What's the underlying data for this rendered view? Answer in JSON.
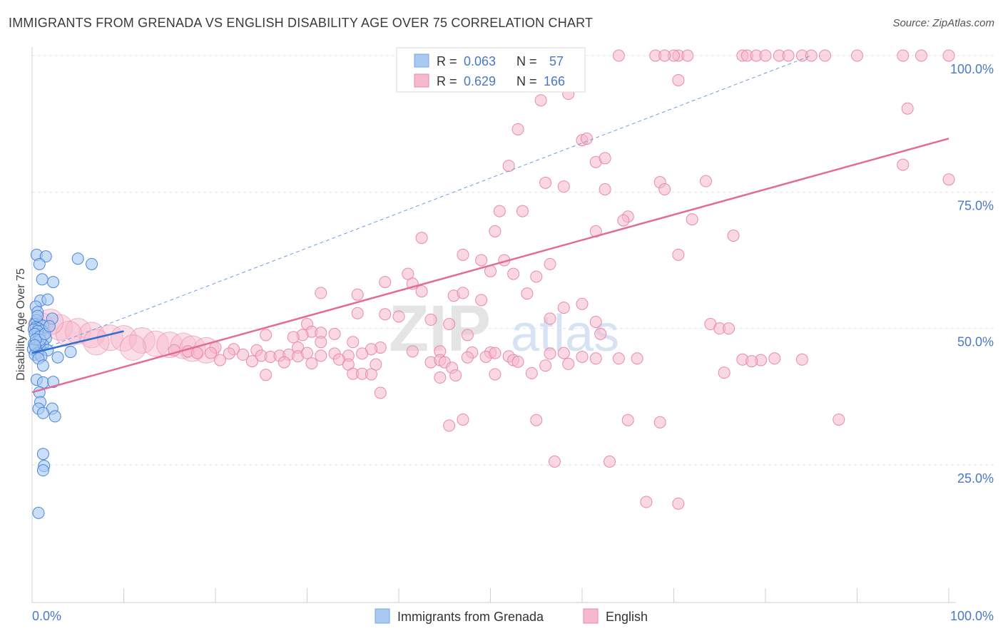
{
  "title": "IMMIGRANTS FROM GRENADA VS ENGLISH DISABILITY AGE OVER 75 CORRELATION CHART",
  "source": "Source: ZipAtlas.com",
  "watermark": {
    "zip": "ZIP",
    "atlas": "atlas"
  },
  "colors": {
    "blue": "#4a86d8",
    "blue_fill": "#a9c8f2",
    "pink": "#e26b97",
    "pink_fill": "#f6b8cc",
    "axis_text": "#4a78c8",
    "grid": "#e3e3e3"
  },
  "legend": {
    "rows": [
      {
        "r_label": "R = ",
        "r_value": "0.063",
        "n_label": "N = ",
        "n_value": "57"
      },
      {
        "r_label": "R = ",
        "r_value": "0.629",
        "n_label": "N = ",
        "n_value": "166"
      }
    ]
  },
  "bottom_legend": [
    "Immigrants from Grenada",
    "English"
  ],
  "chart_data": {
    "type": "scatter",
    "xlabel": "",
    "ylabel": "Disability Age Over 75",
    "xlim": [
      0,
      100
    ],
    "ylim": [
      0,
      100
    ],
    "x_tick_labels": [
      "0.0%",
      "100.0%"
    ],
    "y_tick_labels": [
      "25.0%",
      "50.0%",
      "75.0%",
      "100.0%"
    ],
    "y_ticks": [
      25,
      50,
      75,
      100
    ],
    "grid": true,
    "legend_position": "top-center",
    "series": [
      {
        "name": "Immigrants from Grenada",
        "r": 0.063,
        "n": 57,
        "trend": {
          "x": [
            0,
            10
          ],
          "y": [
            45.5,
            49.5
          ]
        },
        "trend_dashed": {
          "x": [
            0,
            85
          ],
          "y": [
            45.5,
            100
          ]
        },
        "points": [
          [
            0.5,
            63.5
          ],
          [
            1.5,
            63.2
          ],
          [
            5,
            62.8
          ],
          [
            6.5,
            61.8
          ],
          [
            0.8,
            61.8
          ],
          [
            1.1,
            59
          ],
          [
            2.3,
            58.5
          ],
          [
            0.9,
            55.1
          ],
          [
            1.7,
            55.3
          ],
          [
            0.4,
            54
          ],
          [
            0.6,
            53
          ],
          [
            2.2,
            51.8
          ],
          [
            0.5,
            51.5
          ],
          [
            0.3,
            50.8
          ],
          [
            0.9,
            50.7
          ],
          [
            1.2,
            50.5
          ],
          [
            0.4,
            50.2
          ],
          [
            0.7,
            50
          ],
          [
            0.2,
            49.8
          ],
          [
            1.1,
            49.6
          ],
          [
            0.6,
            49.5
          ],
          [
            0.3,
            49
          ],
          [
            0.8,
            48.5
          ],
          [
            1.5,
            48.2
          ],
          [
            0.5,
            47.6
          ],
          [
            0.2,
            47.2
          ],
          [
            1.2,
            47
          ],
          [
            0.8,
            46.8
          ],
          [
            0.4,
            46.5
          ],
          [
            0.1,
            46.2
          ],
          [
            1.7,
            46
          ],
          [
            4.2,
            45.7
          ],
          [
            0.6,
            45.5
          ],
          [
            0.3,
            45.2
          ],
          [
            1,
            44.9
          ],
          [
            2.8,
            44.7
          ],
          [
            0.7,
            44.5
          ],
          [
            1.2,
            43.2
          ],
          [
            0.5,
            40.6
          ],
          [
            1.2,
            40.1
          ],
          [
            2.3,
            40.2
          ],
          [
            0.8,
            38.3
          ],
          [
            0.9,
            36.5
          ],
          [
            0.7,
            35.3
          ],
          [
            2.2,
            35.3
          ],
          [
            1.2,
            34.5
          ],
          [
            2.5,
            33.9
          ],
          [
            1.2,
            27
          ],
          [
            1.3,
            24.8
          ],
          [
            1.2,
            24
          ],
          [
            0.7,
            16.2
          ],
          [
            0.9,
            47.9
          ],
          [
            0.4,
            48
          ],
          [
            1.4,
            49
          ],
          [
            0.6,
            52.3
          ],
          [
            1.9,
            50.4
          ],
          [
            0.3,
            46.9
          ]
        ]
      },
      {
        "name": "English",
        "r": 0.629,
        "n": 166,
        "trend": {
          "x": [
            0,
            100
          ],
          "y": [
            38.3,
            84.8
          ]
        },
        "points": [
          [
            64,
            100
          ],
          [
            68,
            100
          ],
          [
            70.5,
            100
          ],
          [
            70,
            100
          ],
          [
            69,
            100
          ],
          [
            71.5,
            100
          ],
          [
            77.5,
            100
          ],
          [
            78,
            100
          ],
          [
            79,
            100
          ],
          [
            80,
            100
          ],
          [
            81.5,
            100
          ],
          [
            82.5,
            100
          ],
          [
            84,
            100
          ],
          [
            85,
            100
          ],
          [
            86.5,
            100
          ],
          [
            90,
            100
          ],
          [
            95,
            100
          ],
          [
            97,
            100
          ],
          [
            100,
            100
          ],
          [
            70.5,
            95.5
          ],
          [
            55.5,
            91.8
          ],
          [
            58.5,
            93
          ],
          [
            95.5,
            90.3
          ],
          [
            53,
            86.5
          ],
          [
            60,
            84.5
          ],
          [
            60.5,
            84.8
          ],
          [
            61.5,
            80.5
          ],
          [
            62.5,
            81.2
          ],
          [
            52,
            79.8
          ],
          [
            95,
            80
          ],
          [
            56,
            76.7
          ],
          [
            58,
            76
          ],
          [
            62.5,
            75.5
          ],
          [
            68.5,
            76.8
          ],
          [
            69,
            75.5
          ],
          [
            73.5,
            77
          ],
          [
            100,
            77.3
          ],
          [
            51,
            71.5
          ],
          [
            53.5,
            71.5
          ],
          [
            65,
            70.5
          ],
          [
            64.5,
            69.8
          ],
          [
            72,
            70
          ],
          [
            50.5,
            67.8
          ],
          [
            61.5,
            67.8
          ],
          [
            76.5,
            67
          ],
          [
            42.5,
            66.6
          ],
          [
            47,
            63.5
          ],
          [
            49,
            62.5
          ],
          [
            51.5,
            62.5
          ],
          [
            70.5,
            63.5
          ],
          [
            56.5,
            61.8
          ],
          [
            50,
            60.5
          ],
          [
            52.5,
            60
          ],
          [
            41,
            60
          ],
          [
            55,
            59.5
          ],
          [
            38.5,
            58.5
          ],
          [
            41.5,
            58.2
          ],
          [
            42.5,
            56.8
          ],
          [
            35.5,
            56.2
          ],
          [
            31.5,
            56.5
          ],
          [
            46,
            56
          ],
          [
            47,
            56.5
          ],
          [
            49,
            55.2
          ],
          [
            54,
            56.4
          ],
          [
            60,
            54.5
          ],
          [
            58,
            53.8
          ],
          [
            35.5,
            52.8
          ],
          [
            38.5,
            52.6
          ],
          [
            40,
            52.2
          ],
          [
            43.5,
            51.6
          ],
          [
            45.5,
            50.8
          ],
          [
            56.5,
            51.8
          ],
          [
            61.5,
            51.2
          ],
          [
            74,
            50.8
          ],
          [
            75,
            50
          ],
          [
            30,
            50.8
          ],
          [
            30.5,
            49.4
          ],
          [
            31.5,
            49.2
          ],
          [
            33,
            49
          ],
          [
            29.5,
            48.8
          ],
          [
            47.5,
            48.8
          ],
          [
            62,
            49
          ],
          [
            25.5,
            48.8
          ],
          [
            28.5,
            48.4
          ],
          [
            31.5,
            47.5
          ],
          [
            35,
            47.5
          ],
          [
            38,
            46.5
          ],
          [
            37,
            46.2
          ],
          [
            29,
            46.5
          ],
          [
            20,
            46.5
          ],
          [
            22,
            46.2
          ],
          [
            24.5,
            46
          ],
          [
            15.5,
            46
          ],
          [
            17,
            45.8
          ],
          [
            18,
            45.5
          ],
          [
            19.5,
            45.5
          ],
          [
            21.5,
            45.4
          ],
          [
            23,
            45.2
          ],
          [
            25,
            45
          ],
          [
            26,
            44.8
          ],
          [
            27,
            45
          ],
          [
            28,
            45.2
          ],
          [
            29,
            44.9
          ],
          [
            30,
            45.5
          ],
          [
            31.5,
            45
          ],
          [
            33,
            45.4
          ],
          [
            34.5,
            45
          ],
          [
            36,
            45.4
          ],
          [
            41.5,
            45.8
          ],
          [
            44.5,
            45.8
          ],
          [
            48,
            45.6
          ],
          [
            50,
            45.6
          ],
          [
            52,
            44.9
          ],
          [
            56.5,
            45.4
          ],
          [
            58,
            45.5
          ],
          [
            60,
            44.8
          ],
          [
            61.5,
            44.5
          ],
          [
            64,
            44.5
          ],
          [
            66,
            44.5
          ],
          [
            20.5,
            44.2
          ],
          [
            24,
            44
          ],
          [
            27.5,
            43.8
          ],
          [
            30.5,
            43.6
          ],
          [
            33.5,
            44.3
          ],
          [
            34.5,
            43.4
          ],
          [
            37.5,
            43.4
          ],
          [
            43.5,
            43.8
          ],
          [
            44.5,
            44.2
          ],
          [
            45,
            43.8
          ],
          [
            47.5,
            44.7
          ],
          [
            49.5,
            44.8
          ],
          [
            50.5,
            45.5
          ],
          [
            52.5,
            44.2
          ],
          [
            53,
            43.9
          ],
          [
            56,
            43.2
          ],
          [
            58.5,
            43.5
          ],
          [
            25.5,
            41.5
          ],
          [
            35,
            41.7
          ],
          [
            36,
            41.7
          ],
          [
            37,
            41.6
          ],
          [
            45.8,
            42.8
          ],
          [
            46.2,
            41.4
          ],
          [
            50.5,
            41.6
          ],
          [
            54.5,
            41.8
          ],
          [
            44.5,
            41
          ],
          [
            38,
            38.2
          ],
          [
            45.5,
            32.2
          ],
          [
            47,
            33.3
          ],
          [
            55,
            33.2
          ],
          [
            65,
            33.2
          ],
          [
            68.5,
            32.8
          ],
          [
            57,
            25.6
          ],
          [
            63,
            25.6
          ],
          [
            67,
            18.2
          ],
          [
            70.5,
            17.9
          ],
          [
            88,
            33.3
          ],
          [
            75.5,
            41.9
          ],
          [
            79.5,
            44.2
          ],
          [
            77.5,
            44.3
          ],
          [
            78.5,
            44
          ],
          [
            81,
            44.5
          ],
          [
            84,
            44.3
          ],
          [
            76,
            50
          ]
        ],
        "big_points": [
          [
            1,
            50.5
          ],
          [
            3,
            50.2
          ],
          [
            5,
            49.5
          ],
          [
            6.5,
            48.8
          ],
          [
            8.5,
            48.3
          ],
          [
            10,
            48.2
          ],
          [
            12,
            47.8
          ],
          [
            13.5,
            47.2
          ],
          [
            15,
            47
          ],
          [
            16.5,
            46.8
          ],
          [
            17.5,
            46.3
          ],
          [
            19,
            46
          ],
          [
            11,
            46.5
          ],
          [
            7,
            47.5
          ],
          [
            4,
            49
          ],
          [
            2,
            51.2
          ]
        ]
      }
    ]
  }
}
